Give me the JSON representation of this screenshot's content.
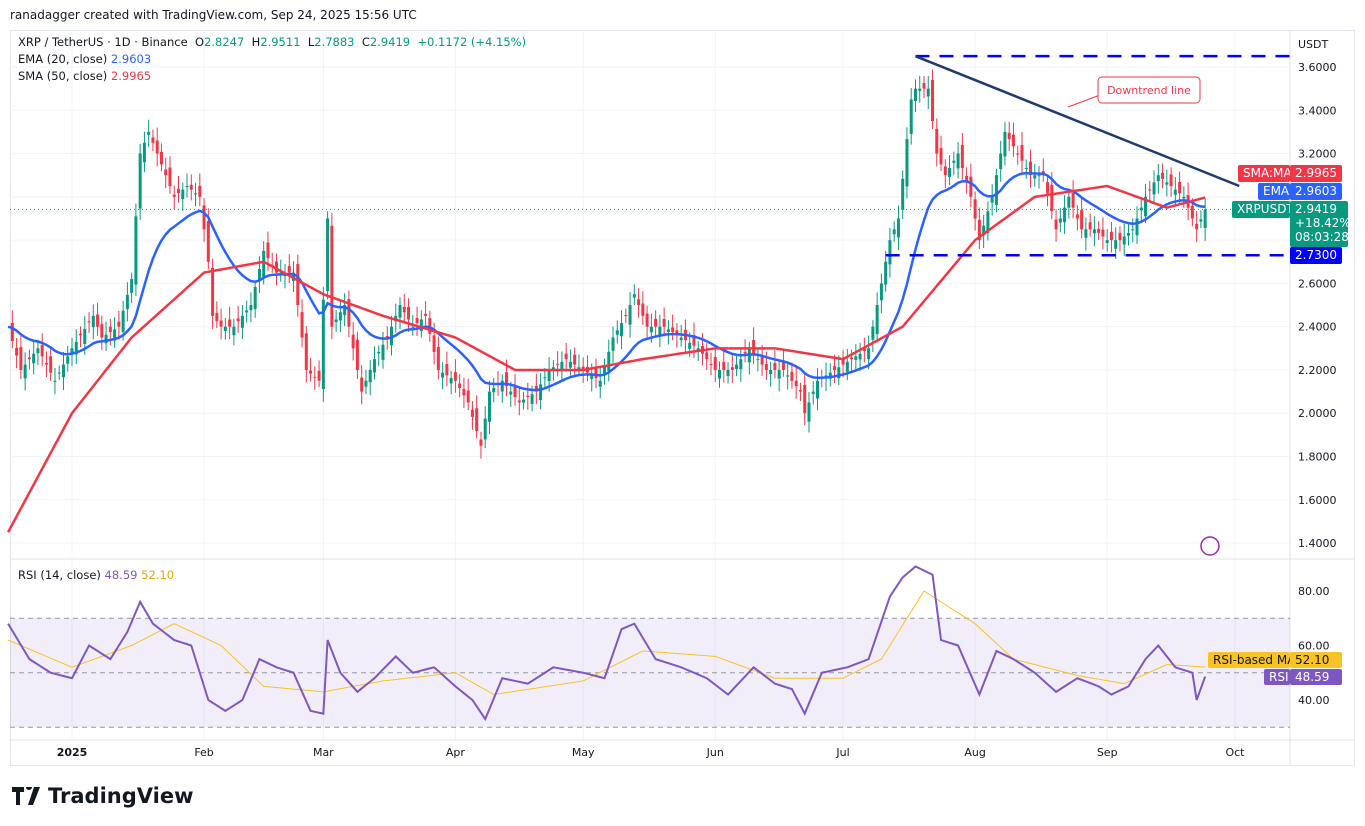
{
  "credit": "ranadagger created with TradingView.com, Sep 24, 2025 15:56 UTC",
  "legend": {
    "symbol": "XRP / TetherUS · 1D · Binance",
    "o_label": "O",
    "o": "2.8247",
    "h_label": "H",
    "h": "2.9511",
    "l_label": "L",
    "l": "2.7883",
    "c_label": "C",
    "c": "2.9419",
    "change": "+0.1172 (+4.15%)",
    "ema_label": "EMA (20, close)",
    "ema": "2.9603",
    "sma_label": "SMA (50, close)",
    "sma": "2.9965",
    "rsi_label": "RSI (14, close)",
    "rsi": "48.59",
    "rsi_ma": "52.10"
  },
  "axis": {
    "currency": "USDT",
    "price_ticks": [
      "3.6000",
      "3.4000",
      "3.2000",
      "2.6000",
      "2.4000",
      "2.2000",
      "2.0000",
      "1.8000",
      "1.6000",
      "1.4000"
    ],
    "rsi_ticks": [
      "80.00",
      "60.00",
      "40.00"
    ],
    "time_ticks": [
      [
        "2025-01-01",
        "2025"
      ],
      [
        "2025-02-01",
        "Feb"
      ],
      [
        "2025-03-01",
        "Mar"
      ],
      [
        "2025-04-01",
        "Apr"
      ],
      [
        "2025-05-01",
        "May"
      ],
      [
        "2025-06-01",
        "Jun"
      ],
      [
        "2025-07-01",
        "Jul"
      ],
      [
        "2025-08-01",
        "Aug"
      ],
      [
        "2025-09-01",
        "Sep"
      ],
      [
        "2025-10-01",
        "Oct"
      ]
    ]
  },
  "badges": {
    "sma_tag": "SMA:MA",
    "sma_val": "2.9965",
    "ema_tag": "EMA",
    "ema_val": "2.9603",
    "sym_tag": "XRPUSDT",
    "price": "2.9419",
    "pct": "+18.42%",
    "countdown": "08:03:28",
    "support_val": "2.7300",
    "rsima_tag": "RSI-based MA",
    "rsima_val": "52.10",
    "rsi_tag": "RSI",
    "rsi_val": "48.59"
  },
  "annotation": "Downtrend line",
  "brand": "TradingView",
  "colors": {
    "up": "#089981",
    "down": "#f23645",
    "ema": "#2962ff",
    "sma": "#f23645",
    "rsi": "#7e57c2",
    "rsi_ma": "#f7c325",
    "level": "#0000ff",
    "trend": "#1e3a6e"
  },
  "chart_data": {
    "type": "candlestick",
    "symbol": "XRPUSDT",
    "interval": "1D",
    "yrange": [
      1.3,
      3.72
    ],
    "rsi_range": [
      25,
      95
    ],
    "rsi_bands": [
      30,
      70
    ],
    "rsi_mid": 50,
    "closes": [
      [
        "2024-12-17",
        2.4
      ],
      [
        "2024-12-20",
        2.2
      ],
      [
        "2024-12-24",
        2.3
      ],
      [
        "2024-12-28",
        2.15
      ],
      [
        "2025-01-01",
        2.3
      ],
      [
        "2025-01-06",
        2.45
      ],
      [
        "2025-01-08",
        2.35
      ],
      [
        "2025-01-12",
        2.4
      ],
      [
        "2025-01-15",
        2.62
      ],
      [
        "2025-01-17",
        3.2
      ],
      [
        "2025-01-19",
        3.3
      ],
      [
        "2025-01-22",
        3.15
      ],
      [
        "2025-01-25",
        3.0
      ],
      [
        "2025-01-28",
        3.05
      ],
      [
        "2025-01-31",
        3.0
      ],
      [
        "2025-02-02",
        2.7
      ],
      [
        "2025-02-03",
        2.45
      ],
      [
        "2025-02-05",
        2.4
      ],
      [
        "2025-02-08",
        2.4
      ],
      [
        "2025-02-12",
        2.5
      ],
      [
        "2025-02-15",
        2.75
      ],
      [
        "2025-02-18",
        2.65
      ],
      [
        "2025-02-22",
        2.65
      ],
      [
        "2025-02-25",
        2.2
      ],
      [
        "2025-02-28",
        2.15
      ],
      [
        "2025-03-02",
        2.9
      ],
      [
        "2025-03-03",
        2.4
      ],
      [
        "2025-03-06",
        2.5
      ],
      [
        "2025-03-10",
        2.1
      ],
      [
        "2025-03-13",
        2.25
      ],
      [
        "2025-03-16",
        2.35
      ],
      [
        "2025-03-19",
        2.5
      ],
      [
        "2025-03-22",
        2.4
      ],
      [
        "2025-03-25",
        2.45
      ],
      [
        "2025-03-28",
        2.2
      ],
      [
        "2025-04-01",
        2.15
      ],
      [
        "2025-04-04",
        2.05
      ],
      [
        "2025-04-07",
        1.85
      ],
      [
        "2025-04-09",
        2.1
      ],
      [
        "2025-04-12",
        2.15
      ],
      [
        "2025-04-16",
        2.05
      ],
      [
        "2025-04-20",
        2.1
      ],
      [
        "2025-04-23",
        2.2
      ],
      [
        "2025-04-27",
        2.25
      ],
      [
        "2025-05-01",
        2.2
      ],
      [
        "2025-05-05",
        2.15
      ],
      [
        "2025-05-08",
        2.35
      ],
      [
        "2025-05-11",
        2.45
      ],
      [
        "2025-05-13",
        2.55
      ],
      [
        "2025-05-16",
        2.4
      ],
      [
        "2025-05-20",
        2.4
      ],
      [
        "2025-05-24",
        2.35
      ],
      [
        "2025-05-28",
        2.3
      ],
      [
        "2025-06-01",
        2.2
      ],
      [
        "2025-06-05",
        2.2
      ],
      [
        "2025-06-09",
        2.3
      ],
      [
        "2025-06-13",
        2.2
      ],
      [
        "2025-06-17",
        2.2
      ],
      [
        "2025-06-21",
        2.1
      ],
      [
        "2025-06-22",
        2.0
      ],
      [
        "2025-06-25",
        2.15
      ],
      [
        "2025-06-29",
        2.2
      ],
      [
        "2025-07-03",
        2.25
      ],
      [
        "2025-07-07",
        2.3
      ],
      [
        "2025-07-10",
        2.6
      ],
      [
        "2025-07-12",
        2.8
      ],
      [
        "2025-07-14",
        2.9
      ],
      [
        "2025-07-17",
        3.45
      ],
      [
        "2025-07-18",
        3.5
      ],
      [
        "2025-07-21",
        3.5
      ],
      [
        "2025-07-23",
        3.2
      ],
      [
        "2025-07-25",
        3.1
      ],
      [
        "2025-07-28",
        3.2
      ],
      [
        "2025-07-31",
        3.0
      ],
      [
        "2025-08-02",
        2.8
      ],
      [
        "2025-08-05",
        3.0
      ],
      [
        "2025-08-08",
        3.3
      ],
      [
        "2025-08-11",
        3.2
      ],
      [
        "2025-08-14",
        3.1
      ],
      [
        "2025-08-17",
        3.1
      ],
      [
        "2025-08-20",
        2.85
      ],
      [
        "2025-08-23",
        3.0
      ],
      [
        "2025-08-26",
        2.85
      ],
      [
        "2025-08-29",
        2.85
      ],
      [
        "2025-09-01",
        2.8
      ],
      [
        "2025-09-04",
        2.8
      ],
      [
        "2025-09-07",
        2.85
      ],
      [
        "2025-09-10",
        3.0
      ],
      [
        "2025-09-13",
        3.1
      ],
      [
        "2025-09-16",
        3.05
      ],
      [
        "2025-09-19",
        3.0
      ],
      [
        "2025-09-21",
        2.9
      ],
      [
        "2025-09-22",
        2.85
      ],
      [
        "2025-09-24",
        2.9419
      ]
    ],
    "sma50": [
      [
        "2024-12-17",
        1.45
      ],
      [
        "2025-01-01",
        2.0
      ],
      [
        "2025-01-15",
        2.35
      ],
      [
        "2025-02-01",
        2.65
      ],
      [
        "2025-02-15",
        2.7
      ],
      [
        "2025-03-01",
        2.55
      ],
      [
        "2025-03-15",
        2.45
      ],
      [
        "2025-04-01",
        2.35
      ],
      [
        "2025-04-15",
        2.2
      ],
      [
        "2025-05-01",
        2.2
      ],
      [
        "2025-05-15",
        2.25
      ],
      [
        "2025-06-01",
        2.3
      ],
      [
        "2025-06-15",
        2.3
      ],
      [
        "2025-07-01",
        2.25
      ],
      [
        "2025-07-15",
        2.4
      ],
      [
        "2025-08-01",
        2.8
      ],
      [
        "2025-08-15",
        3.0
      ],
      [
        "2025-09-01",
        3.05
      ],
      [
        "2025-09-15",
        2.95
      ],
      [
        "2025-09-24",
        2.9965
      ]
    ],
    "rsi": [
      [
        "2024-12-17",
        68
      ],
      [
        "2024-12-22",
        55
      ],
      [
        "2024-12-27",
        50
      ],
      [
        "2025-01-01",
        48
      ],
      [
        "2025-01-05",
        60
      ],
      [
        "2025-01-10",
        55
      ],
      [
        "2025-01-14",
        65
      ],
      [
        "2025-01-17",
        76
      ],
      [
        "2025-01-20",
        68
      ],
      [
        "2025-01-25",
        62
      ],
      [
        "2025-01-29",
        60
      ],
      [
        "2025-02-02",
        40
      ],
      [
        "2025-02-06",
        36
      ],
      [
        "2025-02-10",
        40
      ],
      [
        "2025-02-14",
        55
      ],
      [
        "2025-02-18",
        52
      ],
      [
        "2025-02-22",
        50
      ],
      [
        "2025-02-26",
        36
      ],
      [
        "2025-03-01",
        35
      ],
      [
        "2025-03-02",
        62
      ],
      [
        "2025-03-05",
        50
      ],
      [
        "2025-03-09",
        43
      ],
      [
        "2025-03-13",
        48
      ],
      [
        "2025-03-18",
        56
      ],
      [
        "2025-03-22",
        50
      ],
      [
        "2025-03-27",
        52
      ],
      [
        "2025-04-01",
        45
      ],
      [
        "2025-04-05",
        40
      ],
      [
        "2025-04-08",
        33
      ],
      [
        "2025-04-12",
        48
      ],
      [
        "2025-04-18",
        46
      ],
      [
        "2025-04-24",
        52
      ],
      [
        "2025-05-01",
        50
      ],
      [
        "2025-05-06",
        48
      ],
      [
        "2025-05-10",
        66
      ],
      [
        "2025-05-13",
        68
      ],
      [
        "2025-05-18",
        55
      ],
      [
        "2025-05-24",
        52
      ],
      [
        "2025-05-30",
        48
      ],
      [
        "2025-06-04",
        42
      ],
      [
        "2025-06-10",
        52
      ],
      [
        "2025-06-15",
        46
      ],
      [
        "2025-06-19",
        44
      ],
      [
        "2025-06-22",
        35
      ],
      [
        "2025-06-26",
        50
      ],
      [
        "2025-07-02",
        52
      ],
      [
        "2025-07-07",
        55
      ],
      [
        "2025-07-12",
        78
      ],
      [
        "2025-07-15",
        85
      ],
      [
        "2025-07-18",
        89
      ],
      [
        "2025-07-22",
        86
      ],
      [
        "2025-07-24",
        62
      ],
      [
        "2025-07-28",
        60
      ],
      [
        "2025-08-02",
        42
      ],
      [
        "2025-08-06",
        58
      ],
      [
        "2025-08-10",
        55
      ],
      [
        "2025-08-15",
        50
      ],
      [
        "2025-08-20",
        43
      ],
      [
        "2025-08-25",
        48
      ],
      [
        "2025-08-30",
        45
      ],
      [
        "2025-09-02",
        42
      ],
      [
        "2025-09-06",
        45
      ],
      [
        "2025-09-10",
        55
      ],
      [
        "2025-09-13",
        60
      ],
      [
        "2025-09-17",
        52
      ],
      [
        "2025-09-21",
        50
      ],
      [
        "2025-09-22",
        40
      ],
      [
        "2025-09-24",
        48.59
      ]
    ],
    "rsi_ma": [
      [
        "2024-12-17",
        62
      ],
      [
        "2025-01-01",
        52
      ],
      [
        "2025-01-15",
        60
      ],
      [
        "2025-01-25",
        68
      ],
      [
        "2025-02-05",
        60
      ],
      [
        "2025-02-15",
        45
      ],
      [
        "2025-03-01",
        43
      ],
      [
        "2025-03-15",
        47
      ],
      [
        "2025-04-01",
        50
      ],
      [
        "2025-04-10",
        42
      ],
      [
        "2025-05-01",
        47
      ],
      [
        "2025-05-15",
        58
      ],
      [
        "2025-06-01",
        56
      ],
      [
        "2025-06-15",
        48
      ],
      [
        "2025-07-01",
        48
      ],
      [
        "2025-07-10",
        55
      ],
      [
        "2025-07-20",
        80
      ],
      [
        "2025-08-01",
        68
      ],
      [
        "2025-08-10",
        55
      ],
      [
        "2025-08-25",
        49
      ],
      [
        "2025-09-05",
        46
      ],
      [
        "2025-09-15",
        53
      ],
      [
        "2025-09-24",
        52.1
      ]
    ],
    "resistance": 3.65,
    "resistance_from": "2025-07-18",
    "support": 2.73,
    "support_from": "2025-07-11",
    "trendline": [
      [
        "2025-07-18",
        3.65
      ],
      [
        "2025-10-02",
        3.05
      ]
    ]
  }
}
